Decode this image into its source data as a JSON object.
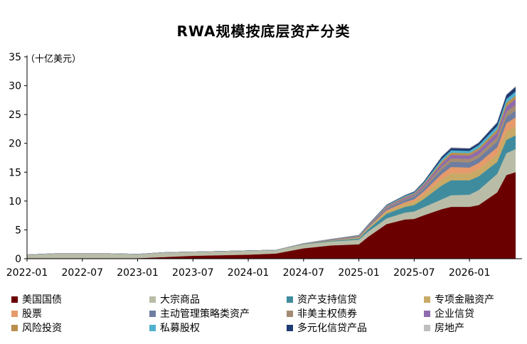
{
  "chart_data": {
    "type": "area",
    "title": "RWA规模按底层资产分类",
    "unit_label": "（十亿美元）",
    "xlabel": "",
    "ylabel": "",
    "ylim": [
      0,
      35
    ],
    "y_ticks": [
      0,
      5,
      10,
      15,
      20,
      25,
      30,
      35
    ],
    "x_range": [
      "2022-01",
      "2026-07"
    ],
    "x_ticks": [
      "2022-01",
      "2022-07",
      "2023-01",
      "2023-07",
      "2024-01",
      "2024-07",
      "2025-01",
      "2025-07",
      "2026-01"
    ],
    "grid": false,
    "legend_position": "bottom",
    "x": [
      "2022-01",
      "2022-04",
      "2022-07",
      "2022-10",
      "2023-01",
      "2023-04",
      "2023-07",
      "2023-10",
      "2024-01",
      "2024-04",
      "2024-07",
      "2024-10",
      "2025-01",
      "2025-02",
      "2025-04",
      "2025-06",
      "2025-07",
      "2025-08",
      "2025-10",
      "2025-11",
      "2026-01",
      "2026-02",
      "2026-04",
      "2026-05",
      "2026-06"
    ],
    "series": [
      {
        "name": "美国国债",
        "color": "#6B0000",
        "values": [
          0.1,
          0.1,
          0.1,
          0.1,
          0.1,
          0.3,
          0.5,
          0.6,
          0.7,
          0.9,
          1.8,
          2.3,
          2.5,
          3.8,
          6.0,
          6.8,
          6.9,
          7.5,
          8.6,
          9.0,
          9.0,
          9.3,
          11.5,
          14.5,
          15.0
        ]
      },
      {
        "name": "大宗商品",
        "color": "#B9BDA8",
        "values": [
          0.6,
          0.8,
          0.8,
          0.8,
          0.7,
          0.8,
          0.7,
          0.7,
          0.7,
          0.6,
          0.7,
          0.7,
          0.8,
          0.9,
          1.0,
          1.2,
          1.3,
          1.4,
          1.7,
          2.0,
          2.1,
          2.6,
          3.2,
          3.8,
          4.0
        ]
      },
      {
        "name": "资产支持信贷",
        "color": "#3F8C9E",
        "values": [
          0.0,
          0.0,
          0.0,
          0.0,
          0.0,
          0.0,
          0.0,
          0.0,
          0.0,
          0.0,
          0.05,
          0.1,
          0.2,
          0.4,
          0.8,
          1.0,
          1.1,
          1.4,
          2.4,
          2.6,
          2.5,
          2.4,
          2.1,
          2.3,
          2.4
        ]
      },
      {
        "name": "专项金融资产",
        "color": "#C8AA66",
        "values": [
          0,
          0,
          0,
          0,
          0,
          0,
          0,
          0,
          0,
          0,
          0.05,
          0.1,
          0.15,
          0.2,
          0.4,
          0.5,
          0.6,
          0.7,
          1.1,
          1.2,
          1.2,
          1.2,
          1.3,
          1.5,
          1.6
        ]
      },
      {
        "name": "股票",
        "color": "#E69A6B",
        "values": [
          0,
          0,
          0,
          0,
          0,
          0,
          0,
          0,
          0,
          0,
          0,
          0,
          0.05,
          0.1,
          0.2,
          0.3,
          0.4,
          0.6,
          0.9,
          1.1,
          1.0,
          1.1,
          1.2,
          1.4,
          1.5
        ]
      },
      {
        "name": "主动管理策略类资产",
        "color": "#6E7DA0",
        "values": [
          0,
          0,
          0,
          0,
          0,
          0,
          0,
          0,
          0,
          0,
          0.05,
          0.1,
          0.1,
          0.2,
          0.3,
          0.4,
          0.5,
          0.5,
          0.8,
          0.9,
          0.9,
          0.9,
          1.0,
          1.1,
          1.2
        ]
      },
      {
        "name": "非美主权债券",
        "color": "#A48C73",
        "values": [
          0,
          0,
          0,
          0,
          0,
          0,
          0,
          0,
          0,
          0,
          0,
          0.05,
          0.1,
          0.1,
          0.2,
          0.2,
          0.2,
          0.3,
          0.5,
          0.6,
          0.6,
          0.6,
          0.8,
          0.9,
          1.0
        ]
      },
      {
        "name": "企业信贷",
        "color": "#8F6AAE",
        "values": [
          0,
          0,
          0,
          0,
          0,
          0,
          0,
          0,
          0,
          0,
          0,
          0.05,
          0.05,
          0.1,
          0.15,
          0.2,
          0.2,
          0.3,
          0.5,
          0.6,
          0.6,
          0.7,
          0.8,
          0.9,
          1.0
        ]
      },
      {
        "name": "风险投资",
        "color": "#B98F4D",
        "values": [
          0,
          0,
          0,
          0,
          0,
          0,
          0,
          0,
          0,
          0,
          0,
          0,
          0.05,
          0.05,
          0.1,
          0.15,
          0.15,
          0.2,
          0.4,
          0.4,
          0.4,
          0.4,
          0.5,
          0.6,
          0.6
        ]
      },
      {
        "name": "私募股权",
        "color": "#4FB1CE",
        "values": [
          0,
          0,
          0,
          0,
          0,
          0,
          0,
          0,
          0,
          0,
          0,
          0,
          0.05,
          0.05,
          0.1,
          0.15,
          0.15,
          0.2,
          0.4,
          0.4,
          0.4,
          0.5,
          0.6,
          0.7,
          0.7
        ]
      },
      {
        "name": "多元化信贷产品",
        "color": "#1F3B73",
        "values": [
          0,
          0,
          0,
          0,
          0,
          0,
          0,
          0,
          0,
          0,
          0,
          0,
          0.05,
          0.05,
          0.1,
          0.1,
          0.15,
          0.2,
          0.4,
          0.4,
          0.4,
          0.4,
          0.6,
          0.7,
          0.8
        ]
      },
      {
        "name": "房地产",
        "color": "#BEBEBE",
        "values": [
          0,
          0,
          0,
          0,
          0,
          0,
          0,
          0,
          0,
          0,
          0,
          0,
          0,
          0,
          0.05,
          0.05,
          0.05,
          0.05,
          0.1,
          0.1,
          0.1,
          0.1,
          0.1,
          0.1,
          0.1
        ]
      }
    ]
  }
}
